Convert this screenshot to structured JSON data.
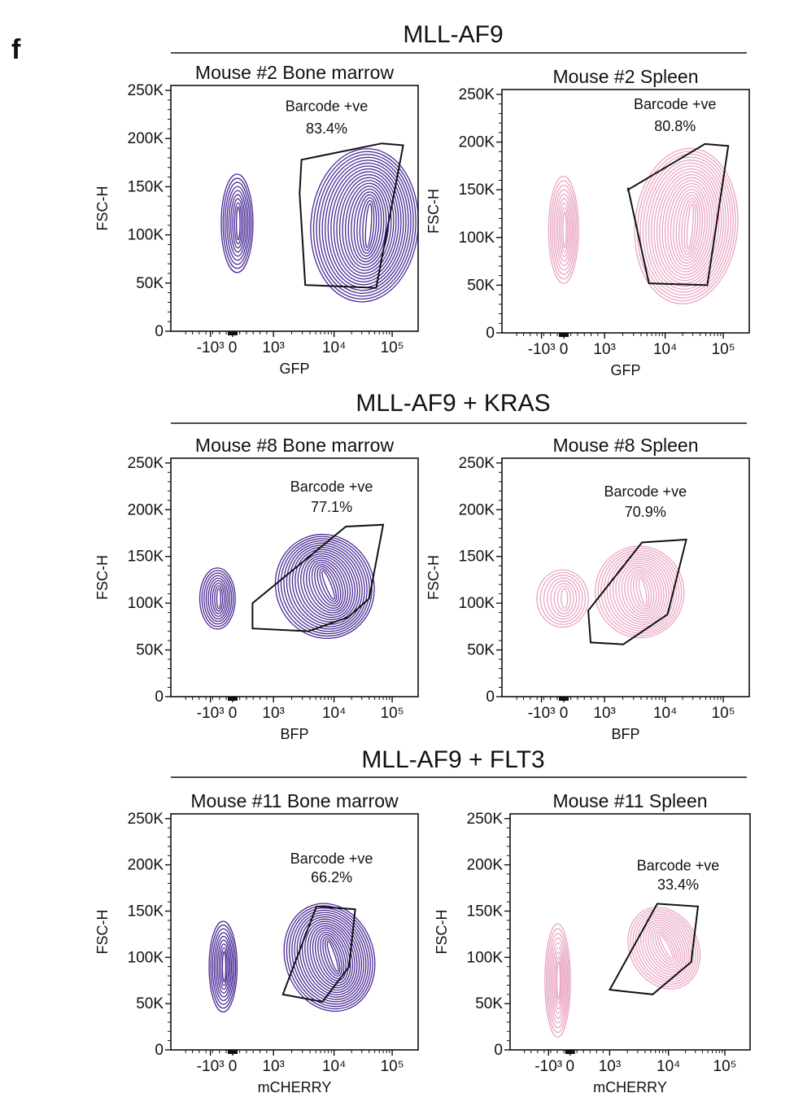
{
  "panel_label": "f",
  "colors": {
    "purple": "#4b2a95",
    "pink": "#e9a6c4",
    "gate": "#111111"
  },
  "sections": [
    {
      "title": "MLL-AF9"
    },
    {
      "title": "MLL-AF9 + KRAS"
    },
    {
      "title": "MLL-AF9 + FLT3"
    }
  ],
  "chart_data": [
    {
      "type": "contour",
      "title": "Mouse #2 Bone marrow",
      "xlabel": "GFP",
      "ylabel": "FSC-H",
      "color": "purple",
      "x_ticks": [
        "-10³",
        "0",
        "10³",
        "10⁴",
        "10⁵"
      ],
      "y_ticks": [
        "0",
        "50K",
        "100K",
        "150K",
        "200K",
        "250K"
      ],
      "ylim": [
        0,
        250000
      ],
      "gate": {
        "label": "Barcode +ve",
        "percent": "83.4%",
        "polygon": [
          [
            2.4,
            178000
          ],
          [
            4.12,
            195000
          ],
          [
            4.58,
            193000
          ],
          [
            4.0,
            45000
          ],
          [
            2.48,
            48000
          ],
          [
            2.36,
            143000
          ]
        ]
      },
      "populations": [
        {
          "x": 1.02,
          "y": 112000,
          "rx": 0.34,
          "ry": 50000,
          "levels": 9,
          "rot": 0
        },
        {
          "x": 3.75,
          "y": 110000,
          "rx": 1.15,
          "ry": 78000,
          "levels": 20,
          "rot": 4
        }
      ]
    },
    {
      "type": "contour",
      "title": "Mouse #2 Spleen",
      "xlabel": "GFP",
      "ylabel": "FSC-H",
      "color": "pink",
      "x_ticks": [
        "-10³",
        "0",
        "10³",
        "10⁴",
        "10⁵"
      ],
      "y_ticks": [
        "0",
        "50K",
        "100K",
        "150K",
        "200K",
        "250K"
      ],
      "ylim": [
        0,
        250000
      ],
      "gate": {
        "label": "Barcode +ve",
        "percent": "80.8%",
        "polygon": [
          [
            2.3,
            150000
          ],
          [
            3.95,
            198000
          ],
          [
            4.45,
            196000
          ],
          [
            4.0,
            50000
          ],
          [
            2.75,
            52000
          ],
          [
            2.3,
            152000
          ]
        ]
      },
      "populations": [
        {
          "x": 0.92,
          "y": 108000,
          "rx": 0.32,
          "ry": 55000,
          "levels": 9,
          "rot": 0
        },
        {
          "x": 3.55,
          "y": 112000,
          "rx": 1.1,
          "ry": 80000,
          "levels": 20,
          "rot": 5
        }
      ]
    },
    {
      "type": "contour",
      "title": "Mouse #8 Bone marrow",
      "xlabel": "BFP",
      "ylabel": "FSC-H",
      "color": "purple",
      "x_ticks": [
        "-10³",
        "0",
        "10³",
        "10⁴",
        "10⁵"
      ],
      "y_ticks": [
        "0",
        "50K",
        "100K",
        "150K",
        "200K",
        "250K"
      ],
      "ylim": [
        0,
        250000
      ],
      "gate": {
        "label": "Barcode +ve",
        "percent": "77.1%",
        "polygon": [
          [
            1.35,
            100000
          ],
          [
            3.35,
            182000
          ],
          [
            4.15,
            184000
          ],
          [
            3.85,
            105000
          ],
          [
            3.4,
            85000
          ],
          [
            2.55,
            70000
          ],
          [
            1.35,
            73000
          ]
        ]
      },
      "populations": [
        {
          "x": 0.6,
          "y": 105000,
          "rx": 0.38,
          "ry": 32000,
          "levels": 9,
          "rot": 0
        },
        {
          "x": 2.9,
          "y": 118000,
          "rx": 1.05,
          "ry": 55000,
          "levels": 18,
          "rot": -22
        }
      ]
    },
    {
      "type": "contour",
      "title": "Mouse #8 Spleen",
      "xlabel": "BFP",
      "ylabel": "FSC-H",
      "color": "pink",
      "x_ticks": [
        "-10³",
        "0",
        "10³",
        "10⁴",
        "10⁵"
      ],
      "y_ticks": [
        "0",
        "50K",
        "100K",
        "150K",
        "200K",
        "250K"
      ],
      "ylim": [
        0,
        250000
      ],
      "gate": {
        "label": "Barcode +ve",
        "percent": "70.9%",
        "polygon": [
          [
            1.45,
            92000
          ],
          [
            2.6,
            165000
          ],
          [
            3.55,
            168000
          ],
          [
            3.15,
            88000
          ],
          [
            2.2,
            56000
          ],
          [
            1.5,
            58000
          ]
        ]
      },
      "populations": [
        {
          "x": 0.9,
          "y": 105000,
          "rx": 0.55,
          "ry": 30000,
          "levels": 8,
          "rot": 0
        },
        {
          "x": 2.55,
          "y": 112000,
          "rx": 0.95,
          "ry": 48000,
          "levels": 16,
          "rot": -12
        }
      ]
    },
    {
      "type": "contour",
      "title": "Mouse #11 Bone marrow",
      "xlabel": "mCHERRY",
      "ylabel": "FSC-H",
      "color": "purple",
      "x_ticks": [
        "-10³",
        "0",
        "10³",
        "10⁴",
        "10⁵"
      ],
      "y_ticks": [
        "0",
        "50K",
        "100K",
        "150K",
        "200K",
        "250K"
      ],
      "ylim": [
        0,
        250000
      ],
      "gate": {
        "label": "Barcode +ve",
        "percent": "66.2%",
        "polygon": [
          [
            2.0,
            60000
          ],
          [
            2.72,
            155000
          ],
          [
            3.55,
            152000
          ],
          [
            3.42,
            90000
          ],
          [
            2.85,
            52000
          ]
        ]
      },
      "populations": [
        {
          "x": 0.72,
          "y": 90000,
          "rx": 0.3,
          "ry": 48000,
          "levels": 9,
          "rot": 0
        },
        {
          "x": 3.0,
          "y": 100000,
          "rx": 0.95,
          "ry": 58000,
          "levels": 18,
          "rot": -18
        }
      ]
    },
    {
      "type": "contour",
      "title": "Mouse #11 Spleen",
      "xlabel": "mCHERRY",
      "ylabel": "FSC-H",
      "color": "pink",
      "x_ticks": [
        "-10³",
        "0",
        "10³",
        "10⁴",
        "10⁵"
      ],
      "y_ticks": [
        "0",
        "50K",
        "100K",
        "150K",
        "200K",
        "250K"
      ],
      "ylim": [
        0,
        250000
      ],
      "gate": {
        "label": "Barcode +ve",
        "percent": "33.4%",
        "polygon": [
          [
            1.8,
            65000
          ],
          [
            2.85,
            158000
          ],
          [
            3.75,
            155000
          ],
          [
            3.6,
            95000
          ],
          [
            2.75,
            60000
          ]
        ]
      },
      "populations": [
        {
          "x": 0.65,
          "y": 75000,
          "rx": 0.28,
          "ry": 60000,
          "levels": 9,
          "rot": 0
        },
        {
          "x": 3.0,
          "y": 110000,
          "rx": 0.75,
          "ry": 45000,
          "levels": 14,
          "rot": -28
        }
      ]
    }
  ]
}
